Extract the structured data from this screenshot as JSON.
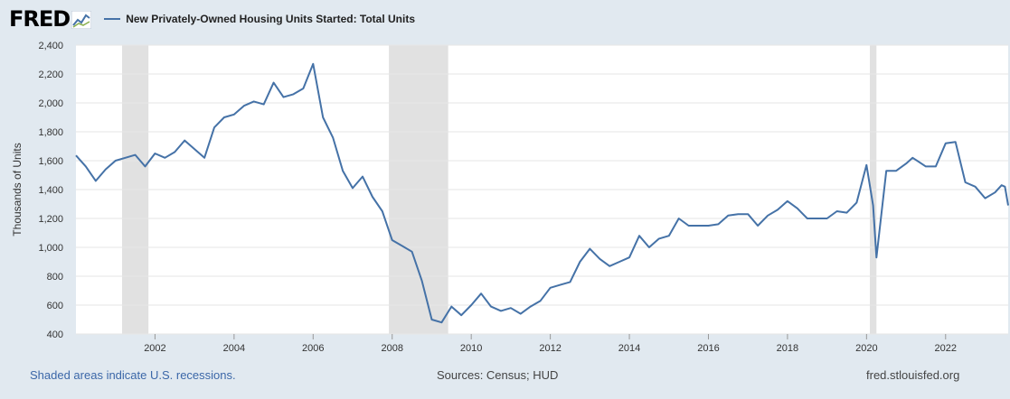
{
  "header": {
    "logo_text": "FRED",
    "logo_icon": "trend-graph-icon",
    "title": "New Privately-Owned Housing Units Started: Total Units"
  },
  "footer": {
    "recession_note": "Shaded areas indicate U.S. recessions.",
    "sources": "Sources: Census; HUD",
    "site": "fred.stlouisfed.org"
  },
  "colors": {
    "line": "#4572a7",
    "background": "#e1e9f0",
    "plot_bg": "#ffffff",
    "recession": "#e1e1e1"
  },
  "chart_data": {
    "type": "line",
    "title": "New Privately-Owned Housing Units Started: Total Units",
    "xlabel": "",
    "ylabel": "Thousands of Units",
    "ylim": [
      400,
      2400
    ],
    "xlim": [
      "2000-01",
      "2023-08"
    ],
    "yticks": [
      "400",
      "600",
      "800",
      "1,000",
      "1,200",
      "1,400",
      "1,600",
      "1,800",
      "2,000",
      "2,200",
      "2,400"
    ],
    "xticks": [
      "2002",
      "2004",
      "2006",
      "2008",
      "2010",
      "2012",
      "2014",
      "2016",
      "2018",
      "2020",
      "2022"
    ],
    "grid": "horizontal",
    "recessions": [
      {
        "start": "2001-03",
        "end": "2001-11"
      },
      {
        "start": "2007-12",
        "end": "2009-06"
      },
      {
        "start": "2020-02",
        "end": "2020-04"
      }
    ],
    "series": [
      {
        "name": "New Privately-Owned Housing Units Started: Total Units",
        "x": [
          "2000-01",
          "2000-04",
          "2000-07",
          "2000-10",
          "2001-01",
          "2001-04",
          "2001-07",
          "2001-10",
          "2002-01",
          "2002-04",
          "2002-07",
          "2002-10",
          "2003-01",
          "2003-04",
          "2003-07",
          "2003-10",
          "2004-01",
          "2004-04",
          "2004-07",
          "2004-10",
          "2005-01",
          "2005-04",
          "2005-07",
          "2005-10",
          "2006-01",
          "2006-04",
          "2006-07",
          "2006-10",
          "2007-01",
          "2007-04",
          "2007-07",
          "2007-10",
          "2008-01",
          "2008-04",
          "2008-07",
          "2008-10",
          "2009-01",
          "2009-04",
          "2009-07",
          "2009-10",
          "2010-01",
          "2010-04",
          "2010-07",
          "2010-10",
          "2011-01",
          "2011-04",
          "2011-07",
          "2011-10",
          "2012-01",
          "2012-04",
          "2012-07",
          "2012-10",
          "2013-01",
          "2013-04",
          "2013-07",
          "2013-10",
          "2014-01",
          "2014-04",
          "2014-07",
          "2014-10",
          "2015-01",
          "2015-04",
          "2015-07",
          "2015-10",
          "2016-01",
          "2016-04",
          "2016-07",
          "2016-10",
          "2017-01",
          "2017-04",
          "2017-07",
          "2017-10",
          "2018-01",
          "2018-04",
          "2018-07",
          "2018-10",
          "2019-01",
          "2019-04",
          "2019-07",
          "2019-10",
          "2020-01",
          "2020-03",
          "2020-04",
          "2020-07",
          "2020-10",
          "2021-01",
          "2021-03",
          "2021-07",
          "2021-10",
          "2022-01",
          "2022-04",
          "2022-07",
          "2022-10",
          "2023-01",
          "2023-04",
          "2023-06",
          "2023-07",
          "2023-08"
        ],
        "values": [
          1636,
          1560,
          1460,
          1540,
          1600,
          1620,
          1640,
          1560,
          1650,
          1620,
          1660,
          1740,
          1680,
          1620,
          1830,
          1900,
          1920,
          1980,
          2010,
          1990,
          2140,
          2040,
          2060,
          2100,
          2270,
          1900,
          1760,
          1530,
          1410,
          1490,
          1350,
          1250,
          1050,
          1010,
          970,
          770,
          500,
          480,
          590,
          530,
          600,
          680,
          590,
          560,
          580,
          540,
          590,
          630,
          720,
          740,
          760,
          900,
          990,
          920,
          870,
          900,
          930,
          1080,
          1000,
          1060,
          1080,
          1200,
          1150,
          1150,
          1150,
          1160,
          1220,
          1230,
          1230,
          1150,
          1220,
          1260,
          1320,
          1270,
          1200,
          1200,
          1200,
          1250,
          1240,
          1310,
          1570,
          1290,
          930,
          1530,
          1530,
          1580,
          1620,
          1560,
          1560,
          1720,
          1730,
          1450,
          1420,
          1340,
          1380,
          1430,
          1420,
          1290
        ]
      }
    ]
  }
}
